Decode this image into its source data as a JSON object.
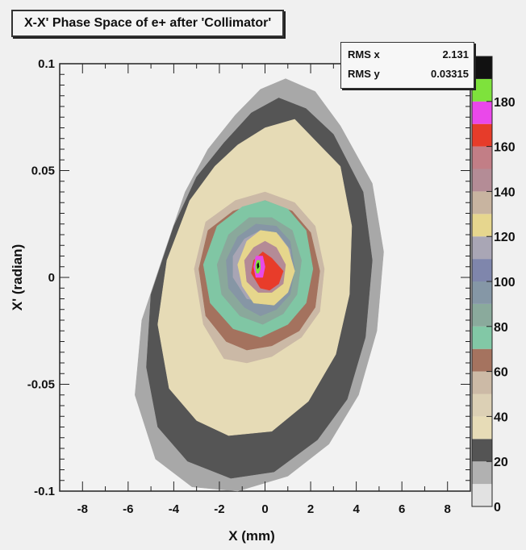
{
  "title": "X-X' Phase Space of e+ after 'Collimator'",
  "stats": [
    {
      "label": "RMS x",
      "value": "2.131"
    },
    {
      "label": "RMS y",
      "value": "0.03315"
    }
  ],
  "chart_data": {
    "type": "contour",
    "title": "X-X' Phase Space of e+ after 'Collimator'",
    "xlabel": "X (mm)",
    "ylabel": "X' (radian)",
    "xlim": [
      -9,
      9
    ],
    "ylim": [
      -0.1,
      0.1
    ],
    "x_ticks": [
      -8,
      -6,
      -4,
      -2,
      0,
      2,
      4,
      6,
      8
    ],
    "y_ticks": [
      -0.1,
      -0.05,
      0,
      0.05,
      0.1
    ],
    "y_tick_labels": [
      "-0.1",
      "-0.05",
      "0",
      "0.05",
      "0.1"
    ],
    "colorbar": {
      "range": [
        0,
        190
      ],
      "tick_values": [
        0,
        20,
        40,
        60,
        80,
        100,
        120,
        140,
        160,
        180
      ],
      "levels": [
        {
          "from": 0,
          "to": 10,
          "color": "#e2e2e2"
        },
        {
          "from": 10,
          "to": 20,
          "color": "#b1b1b1"
        },
        {
          "from": 20,
          "to": 30,
          "color": "#545454"
        },
        {
          "from": 30,
          "to": 40,
          "color": "#e7dcb7"
        },
        {
          "from": 40,
          "to": 50,
          "color": "#dcd0b5"
        },
        {
          "from": 50,
          "to": 60,
          "color": "#ccbaa6"
        },
        {
          "from": 60,
          "to": 70,
          "color": "#a5735f"
        },
        {
          "from": 70,
          "to": 80,
          "color": "#82c8a6"
        },
        {
          "from": 80,
          "to": 90,
          "color": "#8aaa9c"
        },
        {
          "from": 90,
          "to": 100,
          "color": "#8597a6"
        },
        {
          "from": 100,
          "to": 110,
          "color": "#7f86ac"
        },
        {
          "from": 110,
          "to": 120,
          "color": "#a9a6b5"
        },
        {
          "from": 120,
          "to": 130,
          "color": "#e6d68e"
        },
        {
          "from": 130,
          "to": 140,
          "color": "#c8b4a0"
        },
        {
          "from": 140,
          "to": 150,
          "color": "#b48c96"
        },
        {
          "from": 150,
          "to": 160,
          "color": "#c27e86"
        },
        {
          "from": 160,
          "to": 170,
          "color": "#e63c2a"
        },
        {
          "from": 170,
          "to": 180,
          "color": "#ea48ea"
        },
        {
          "from": 180,
          "to": 190,
          "color": "#7ee23c"
        },
        {
          "from": 190,
          "to": 200,
          "color": "#111111"
        }
      ]
    },
    "contours": [
      {
        "level": 10,
        "color": "#a8a8a8",
        "points": [
          [
            -3.2,
            -0.098
          ],
          [
            -4.8,
            -0.085
          ],
          [
            -5.7,
            -0.055
          ],
          [
            -5.4,
            -0.02
          ],
          [
            -4.4,
            0.012
          ],
          [
            -3.5,
            0.04
          ],
          [
            -2.5,
            0.06
          ],
          [
            -1.3,
            0.076
          ],
          [
            -0.2,
            0.088
          ],
          [
            0.9,
            0.093
          ],
          [
            2.2,
            0.087
          ],
          [
            3.3,
            0.071
          ],
          [
            4.7,
            0.044
          ],
          [
            5.2,
            0.012
          ],
          [
            4.9,
            -0.025
          ],
          [
            4.1,
            -0.055
          ],
          [
            2.8,
            -0.078
          ],
          [
            1.0,
            -0.093
          ],
          [
            -1.2,
            -0.1
          ]
        ]
      },
      {
        "level": 20,
        "color": "#555555",
        "points": [
          [
            -3.4,
            -0.086
          ],
          [
            -4.7,
            -0.07
          ],
          [
            -5.2,
            -0.042
          ],
          [
            -5.0,
            -0.008
          ],
          [
            -4.0,
            0.024
          ],
          [
            -3.0,
            0.047
          ],
          [
            -1.8,
            0.063
          ],
          [
            -0.6,
            0.077
          ],
          [
            0.6,
            0.084
          ],
          [
            1.8,
            0.079
          ],
          [
            3.0,
            0.067
          ],
          [
            4.3,
            0.04
          ],
          [
            4.7,
            0.008
          ],
          [
            4.4,
            -0.028
          ],
          [
            3.6,
            -0.057
          ],
          [
            2.3,
            -0.076
          ],
          [
            0.4,
            -0.091
          ],
          [
            -1.5,
            -0.094
          ]
        ]
      },
      {
        "level": 30,
        "color": "#e6dbb6",
        "points": [
          [
            -3.0,
            -0.067
          ],
          [
            -4.2,
            -0.052
          ],
          [
            -4.7,
            -0.022
          ],
          [
            -4.3,
            0.008
          ],
          [
            -3.3,
            0.036
          ],
          [
            -2.2,
            0.052
          ],
          [
            -1.2,
            0.062
          ],
          [
            0.0,
            0.07
          ],
          [
            1.3,
            0.074
          ],
          [
            2.3,
            0.063
          ],
          [
            3.3,
            0.052
          ],
          [
            3.8,
            0.024
          ],
          [
            3.7,
            -0.008
          ],
          [
            3.1,
            -0.036
          ],
          [
            1.9,
            -0.058
          ],
          [
            0.3,
            -0.072
          ],
          [
            -1.6,
            -0.074
          ]
        ]
      },
      {
        "level": 50,
        "color": "#cbb9a6",
        "points": [
          [
            -1.8,
            -0.038
          ],
          [
            -2.7,
            -0.022
          ],
          [
            -3.1,
            0.004
          ],
          [
            -2.6,
            0.026
          ],
          [
            -1.3,
            0.036
          ],
          [
            0.0,
            0.04
          ],
          [
            1.3,
            0.035
          ],
          [
            2.2,
            0.024
          ],
          [
            2.6,
            0.004
          ],
          [
            2.4,
            -0.016
          ],
          [
            1.6,
            -0.028
          ],
          [
            0.3,
            -0.037
          ],
          [
            -0.8,
            -0.04
          ]
        ]
      },
      {
        "level": 60,
        "color": "#a4725e",
        "points": [
          [
            -1.7,
            -0.03
          ],
          [
            -2.6,
            -0.018
          ],
          [
            -2.9,
            0.004
          ],
          [
            -2.5,
            0.022
          ],
          [
            -1.4,
            0.031
          ],
          [
            0.0,
            0.036
          ],
          [
            1.2,
            0.031
          ],
          [
            2.0,
            0.021
          ],
          [
            2.4,
            0.003
          ],
          [
            2.2,
            -0.014
          ],
          [
            1.5,
            -0.025
          ],
          [
            0.3,
            -0.032
          ],
          [
            -0.8,
            -0.034
          ]
        ]
      },
      {
        "level": 70,
        "color": "#80c6a4",
        "points": [
          [
            -1.4,
            -0.024
          ],
          [
            -2.4,
            -0.012
          ],
          [
            -2.7,
            0.006
          ],
          [
            -2.1,
            0.024
          ],
          [
            -1.0,
            0.033
          ],
          [
            0.0,
            0.036
          ],
          [
            1.0,
            0.032
          ],
          [
            1.8,
            0.022
          ],
          [
            2.1,
            0.004
          ],
          [
            1.8,
            -0.012
          ],
          [
            1.0,
            -0.022
          ],
          [
            -0.2,
            -0.028
          ]
        ]
      },
      {
        "level": 80,
        "color": "#8aa89b",
        "points": [
          [
            -1.1,
            -0.018
          ],
          [
            -1.9,
            -0.008
          ],
          [
            -2.1,
            0.006
          ],
          [
            -1.6,
            0.02
          ],
          [
            -0.7,
            0.028
          ],
          [
            0.3,
            0.028
          ],
          [
            1.2,
            0.022
          ],
          [
            1.6,
            0.008
          ],
          [
            1.4,
            -0.008
          ],
          [
            0.8,
            -0.017
          ],
          [
            -0.1,
            -0.022
          ]
        ]
      },
      {
        "level": 90,
        "color": "#8696a5",
        "points": [
          [
            -0.9,
            -0.014
          ],
          [
            -1.6,
            -0.005
          ],
          [
            -1.7,
            0.008
          ],
          [
            -1.2,
            0.019
          ],
          [
            -0.4,
            0.025
          ],
          [
            0.5,
            0.024
          ],
          [
            1.1,
            0.017
          ],
          [
            1.3,
            0.004
          ],
          [
            1.1,
            -0.008
          ],
          [
            0.5,
            -0.015
          ],
          [
            -0.2,
            -0.018
          ]
        ]
      },
      {
        "level": 110,
        "color": "#a8a5b4",
        "points": [
          [
            -0.8,
            -0.01
          ],
          [
            -1.4,
            0.0
          ],
          [
            -1.4,
            0.01
          ],
          [
            -0.9,
            0.018
          ],
          [
            -0.2,
            0.022
          ],
          [
            0.6,
            0.02
          ],
          [
            1.1,
            0.013
          ],
          [
            1.2,
            0.002
          ],
          [
            0.9,
            -0.007
          ],
          [
            0.3,
            -0.012
          ]
        ]
      },
      {
        "level": 120,
        "color": "#e6d68c",
        "points": [
          [
            -0.5,
            -0.012
          ],
          [
            -1.0,
            -0.004
          ],
          [
            -1.2,
            0.006
          ],
          [
            -0.8,
            0.017
          ],
          [
            -0.2,
            0.022
          ],
          [
            0.5,
            0.021
          ],
          [
            1.0,
            0.014
          ],
          [
            1.3,
            0.003
          ],
          [
            1.0,
            -0.007
          ],
          [
            0.4,
            -0.013
          ]
        ]
      },
      {
        "level": 140,
        "color": "#b48b96",
        "points": [
          [
            -0.3,
            -0.007
          ],
          [
            -0.8,
            -0.002
          ],
          [
            -0.9,
            0.008
          ],
          [
            -0.5,
            0.014
          ],
          [
            0.0,
            0.017
          ],
          [
            0.5,
            0.014
          ],
          [
            0.9,
            0.006
          ],
          [
            0.8,
            -0.003
          ],
          [
            0.3,
            -0.007
          ]
        ]
      },
      {
        "level": 160,
        "color": "#e83c2a",
        "points": [
          [
            -0.2,
            -0.005
          ],
          [
            -0.6,
            0.002
          ],
          [
            -0.5,
            0.008
          ],
          [
            -0.1,
            0.012
          ],
          [
            0.3,
            0.009
          ],
          [
            0.8,
            0.003
          ],
          [
            0.6,
            -0.003
          ],
          [
            0.2,
            -0.006
          ]
        ]
      },
      {
        "level": 170,
        "color": "#e84ae8",
        "points": [
          [
            -0.4,
            0.0
          ],
          [
            -0.5,
            0.005
          ],
          [
            -0.4,
            0.01
          ],
          [
            -0.1,
            0.01
          ],
          [
            0.0,
            0.005
          ],
          [
            -0.1,
            0.0
          ]
        ]
      },
      {
        "level": 180,
        "color": "#7ee23c",
        "points": [
          [
            -0.37,
            0.002
          ],
          [
            -0.42,
            0.005
          ],
          [
            -0.36,
            0.008
          ],
          [
            -0.22,
            0.008
          ],
          [
            -0.2,
            0.004
          ],
          [
            -0.28,
            0.002
          ]
        ]
      },
      {
        "level": 190,
        "color": "#111111",
        "points": [
          [
            -0.33,
            0.004
          ],
          [
            -0.35,
            0.006
          ],
          [
            -0.29,
            0.007
          ],
          [
            -0.26,
            0.005
          ]
        ]
      }
    ]
  }
}
